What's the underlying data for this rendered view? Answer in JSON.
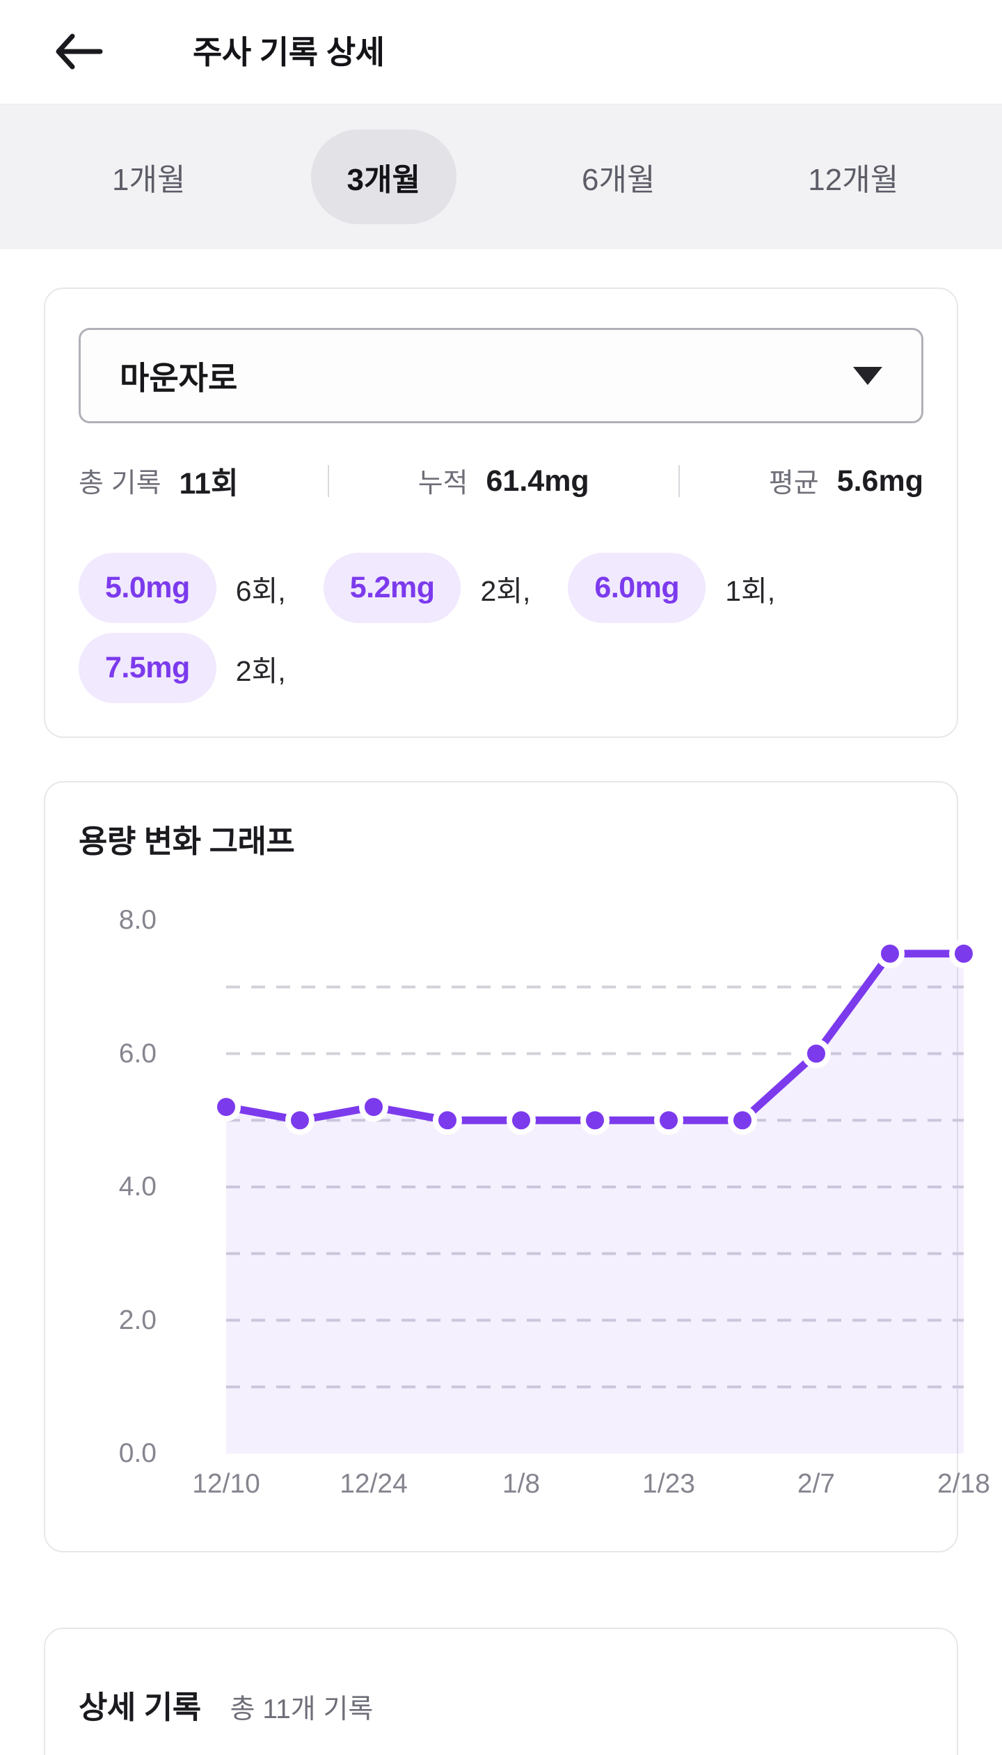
{
  "header": {
    "title": "주사 기록 상세",
    "back_icon": "arrow-left"
  },
  "tabs": {
    "items": [
      {
        "label": "1개월",
        "active": false
      },
      {
        "label": "3개월",
        "active": true
      },
      {
        "label": "6개월",
        "active": false
      },
      {
        "label": "12개월",
        "active": false
      }
    ]
  },
  "summary": {
    "medication_select": {
      "value": "마운자로",
      "icon": "caret-down"
    },
    "stats": [
      {
        "label": "총 기록",
        "value": "11회"
      },
      {
        "label": "누적",
        "value": "61.4mg"
      },
      {
        "label": "평균",
        "value": "5.6mg"
      }
    ],
    "dose_counts": [
      {
        "dose": "5.0mg",
        "count": "6회,"
      },
      {
        "dose": "5.2mg",
        "count": "2회,"
      },
      {
        "dose": "6.0mg",
        "count": "1회,"
      },
      {
        "dose": "7.5mg",
        "count": "2회,"
      }
    ]
  },
  "chart": {
    "title": "용량 변화 그래프"
  },
  "chart_data": {
    "type": "area",
    "title": "용량 변화 그래프",
    "values": [
      5.2,
      5.0,
      5.2,
      5.0,
      5.0,
      5.0,
      5.0,
      5.0,
      6.0,
      7.5,
      7.5
    ],
    "unit": "mg",
    "x_tick_labels": [
      "12/10",
      "12/24",
      "1/8",
      "1/23",
      "2/7",
      "2/18"
    ],
    "y_tick_labels": [
      "8.0",
      "6.0",
      "4.0",
      "2.0",
      "0.0"
    ],
    "ylim": [
      0,
      8
    ],
    "grid": true,
    "grid_interval": 1,
    "legend": false,
    "line_color": "#7c3aed",
    "fill_color": "rgba(124,58,237,0.08)",
    "point_color": "#7c3aed",
    "point_ring_color": "#ffffff",
    "gridline_color": "#d2d2da"
  },
  "records": {
    "title": "상세 기록",
    "count_text": "총 11개 기록"
  },
  "colors": {
    "accent": "#7c3aed",
    "badge_bg": "#f1e9fe",
    "tabbar_bg": "#f2f2f4",
    "active_pill_bg": "#e2e2e7"
  }
}
